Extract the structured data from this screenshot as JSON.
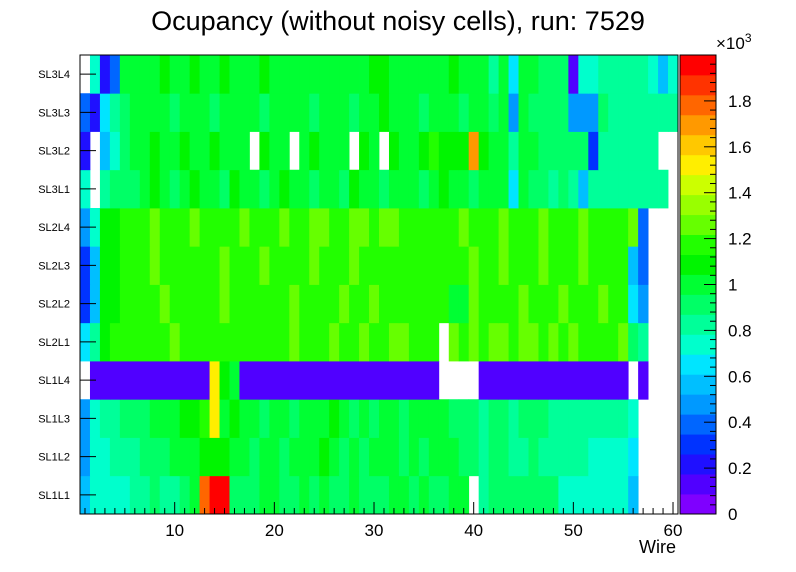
{
  "chart_data": {
    "type": "heatmap",
    "title": "Ocupancy (without noisy cells), run: 7529",
    "xlabel": "Wire",
    "ylabel": "",
    "xlim": [
      0.5,
      60.5
    ],
    "x_ticks": [
      10,
      20,
      30,
      40,
      50,
      60
    ],
    "rows": [
      "SL1L1",
      "SL1L2",
      "SL1L3",
      "SL1L4",
      "SL2L1",
      "SL2L2",
      "SL2L3",
      "SL2L4",
      "SL3L1",
      "SL3L2",
      "SL3L3",
      "SL3L4"
    ],
    "colorbar": {
      "range": [
        0,
        2000
      ],
      "tick_values": [
        0,
        200,
        400,
        600,
        800,
        1000,
        1200,
        1400,
        1600,
        1800
      ],
      "tick_labels": [
        "0",
        "0.2",
        "0.4",
        "0.6",
        "0.8",
        "1",
        "1.2",
        "1.4",
        "1.6",
        "1.8"
      ],
      "exponent_label": "×10",
      "exponent_power": "3",
      "palette": [
        "#7f00ff",
        "#5000ff",
        "#1f10ff",
        "#0033ff",
        "#0066ff",
        "#0099ff",
        "#00bfff",
        "#00e5ff",
        "#00ffcc",
        "#00ff99",
        "#00ff66",
        "#00ff33",
        "#00f500",
        "#22ff00",
        "#66ff00",
        "#99ff00",
        "#ccff00",
        "#ffee00",
        "#ffc800",
        "#ff9900",
        "#ff6600",
        "#ff3300",
        "#ff0000"
      ]
    },
    "values_note": "Cell values (counts) per layer, wire 1..60; null = empty cell",
    "values": [
      [
        600,
        700,
        700,
        750,
        750,
        800,
        850,
        900,
        850,
        850,
        950,
        1000,
        1750,
        1950,
        1950,
        900,
        950,
        900,
        1000,
        1000,
        950,
        900,
        1000,
        950,
        1000,
        950,
        900,
        1000,
        950,
        900,
        950,
        1000,
        1000,
        950,
        1000,
        900,
        950,
        1000,
        1000,
        null,
        800,
        900,
        950,
        900,
        900,
        950,
        900,
        900,
        750,
        700,
        700,
        700,
        700,
        700,
        700,
        600,
        null,
        null,
        null,
        null
      ],
      [
        500,
        700,
        750,
        800,
        800,
        850,
        900,
        900,
        950,
        1000,
        1000,
        1000,
        1100,
        1050,
        1050,
        1000,
        1000,
        950,
        1000,
        1000,
        950,
        1000,
        1000,
        1000,
        1050,
        1000,
        950,
        1000,
        950,
        1000,
        1000,
        1000,
        950,
        1000,
        950,
        1000,
        1000,
        1000,
        950,
        950,
        850,
        900,
        900,
        850,
        850,
        900,
        850,
        850,
        850,
        800,
        800,
        750,
        750,
        750,
        700,
        650,
        null,
        null,
        null,
        null
      ],
      [
        500,
        750,
        800,
        850,
        900,
        900,
        950,
        1000,
        1000,
        1000,
        1050,
        1050,
        1150,
        1550,
        1000,
        1050,
        1000,
        1000,
        950,
        1000,
        1000,
        950,
        1000,
        1000,
        1000,
        1050,
        1000,
        950,
        1000,
        950,
        1000,
        1000,
        950,
        1000,
        1000,
        1000,
        1000,
        950,
        950,
        950,
        850,
        900,
        900,
        850,
        900,
        900,
        900,
        850,
        850,
        850,
        800,
        800,
        800,
        800,
        800,
        700,
        null,
        null,
        null,
        null
      ],
      [
        null,
        150,
        150,
        150,
        150,
        150,
        150,
        150,
        150,
        150,
        150,
        150,
        150,
        1550,
        1100,
        1000,
        150,
        150,
        150,
        150,
        150,
        150,
        150,
        150,
        150,
        150,
        150,
        150,
        150,
        150,
        150,
        150,
        150,
        150,
        150,
        150,
        null,
        null,
        null,
        null,
        150,
        150,
        150,
        150,
        150,
        150,
        150,
        150,
        150,
        150,
        150,
        150,
        150,
        150,
        150,
        null,
        150,
        null,
        null,
        null
      ],
      [
        650,
        800,
        1100,
        1150,
        1150,
        1200,
        1200,
        1150,
        1200,
        1250,
        1150,
        1200,
        1150,
        1200,
        1200,
        1150,
        1200,
        1150,
        1200,
        1150,
        1200,
        1250,
        1200,
        1150,
        1200,
        1250,
        1150,
        1200,
        1250,
        1200,
        1150,
        1300,
        1300,
        1200,
        1150,
        1200,
        null,
        1250,
        1200,
        1250,
        1200,
        1250,
        1250,
        1200,
        1250,
        1250,
        1200,
        1250,
        1200,
        1250,
        1200,
        1150,
        1200,
        1200,
        1250,
        900,
        800,
        null,
        null,
        null
      ],
      [
        300,
        600,
        1050,
        1100,
        1150,
        1200,
        1200,
        1200,
        1250,
        1150,
        1200,
        1200,
        1150,
        1200,
        1250,
        1150,
        1200,
        1150,
        1200,
        1200,
        1150,
        1250,
        1200,
        1150,
        1200,
        1200,
        1250,
        1150,
        1200,
        1250,
        1200,
        1200,
        1200,
        1150,
        1200,
        1150,
        1150,
        1000,
        1000,
        1250,
        1200,
        1200,
        1150,
        1200,
        1250,
        1200,
        1150,
        1200,
        1250,
        1200,
        1150,
        1200,
        1250,
        1150,
        1200,
        650,
        500,
        null,
        null,
        null
      ],
      [
        300,
        600,
        1050,
        1100,
        1150,
        1200,
        1200,
        1250,
        1200,
        1150,
        1200,
        1200,
        1200,
        1150,
        1250,
        1200,
        1150,
        1200,
        1250,
        1150,
        1200,
        1200,
        1150,
        1250,
        1200,
        1150,
        1200,
        1300,
        1200,
        1150,
        1200,
        1200,
        1150,
        1200,
        1150,
        1200,
        1150,
        1200,
        1200,
        1250,
        1150,
        1200,
        1250,
        1200,
        1150,
        1200,
        1250,
        1200,
        1150,
        1200,
        1300,
        1200,
        1150,
        1200,
        1200,
        600,
        350,
        null,
        null,
        null
      ],
      [
        500,
        700,
        1050,
        1100,
        1150,
        1150,
        1200,
        1250,
        1200,
        1200,
        1150,
        1250,
        1200,
        1200,
        1150,
        1200,
        1250,
        1200,
        1150,
        1200,
        1250,
        1200,
        1150,
        1250,
        1300,
        1200,
        1150,
        1250,
        1300,
        1200,
        1300,
        1250,
        1200,
        1150,
        1200,
        1200,
        1150,
        1200,
        1250,
        1200,
        1150,
        1200,
        1250,
        1200,
        1150,
        1200,
        1250,
        1200,
        1150,
        1200,
        1250,
        1200,
        1150,
        1200,
        1200,
        1250,
        350,
        null,
        null,
        null
      ],
      [
        700,
        null,
        850,
        900,
        950,
        950,
        1000,
        1050,
        1000,
        950,
        1000,
        1050,
        1000,
        1000,
        950,
        1050,
        1000,
        1000,
        950,
        1000,
        1050,
        1000,
        1000,
        950,
        1000,
        1000,
        950,
        1050,
        1000,
        1000,
        950,
        1000,
        1000,
        1000,
        950,
        1000,
        1050,
        1000,
        1000,
        950,
        1000,
        1000,
        1000,
        650,
        1000,
        950,
        900,
        850,
        900,
        850,
        600,
        850,
        800,
        800,
        800,
        850,
        800,
        850,
        850,
        null
      ],
      [
        250,
        null,
        550,
        700,
        950,
        1000,
        1000,
        1050,
        1000,
        1000,
        1050,
        1000,
        1000,
        1050,
        1000,
        1000,
        1000,
        null,
        1050,
        1000,
        1000,
        null,
        1000,
        1050,
        1000,
        1000,
        1000,
        null,
        1050,
        1000,
        null,
        1050,
        1000,
        1000,
        1050,
        1150,
        1050,
        1050,
        1100,
        1700,
        1050,
        1000,
        1000,
        850,
        1000,
        1000,
        900,
        900,
        900,
        950,
        950,
        300,
        800,
        850,
        850,
        850,
        850,
        800,
        null,
        null
      ],
      [
        350,
        200,
        650,
        850,
        950,
        1000,
        1000,
        1000,
        1000,
        950,
        1000,
        1000,
        1000,
        950,
        1000,
        1000,
        1000,
        1000,
        950,
        1000,
        1000,
        1000,
        1000,
        950,
        1000,
        1000,
        1000,
        950,
        1000,
        1000,
        1050,
        1000,
        1000,
        1000,
        950,
        1000,
        1000,
        1000,
        950,
        1000,
        1000,
        950,
        1000,
        450,
        1000,
        950,
        900,
        900,
        950,
        500,
        450,
        500,
        900,
        850,
        850,
        800,
        800,
        800,
        800,
        800
      ],
      [
        null,
        700,
        200,
        400,
        1000,
        1000,
        1000,
        1000,
        1050,
        1000,
        1000,
        1050,
        1000,
        1000,
        1050,
        1000,
        1000,
        1000,
        1050,
        1000,
        1000,
        1000,
        1000,
        1000,
        1000,
        1000,
        1000,
        1000,
        1000,
        1050,
        1100,
        1000,
        1000,
        1000,
        1000,
        1000,
        1000,
        1050,
        1000,
        1000,
        1000,
        850,
        1000,
        650,
        1000,
        1000,
        950,
        950,
        900,
        150,
        750,
        750,
        850,
        850,
        800,
        800,
        800,
        750,
        600,
        700
      ]
    ]
  }
}
